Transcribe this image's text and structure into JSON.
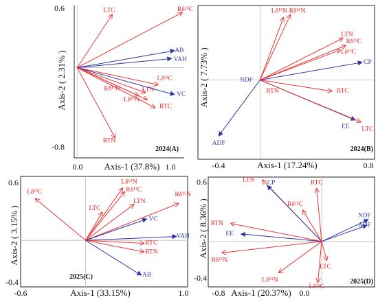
{
  "colors": {
    "red": "#ee3333",
    "blue": "#3333aa",
    "label_red": "#ee2222",
    "label_blue": "#3344aa"
  },
  "chart_data": [
    {
      "type": "biplot",
      "panel_label": "2024(A)",
      "xlabel": "Axis-1 (37.8%)",
      "ylabel": "Axis-2 ( 2.31% )",
      "xlim": [
        -0.03,
        1.1
      ],
      "ylim": [
        -0.9,
        0.62
      ],
      "xticks": [
        {
          "v": 0.0,
          "label": "0.0"
        },
        {
          "v": 1.0,
          "label": "1.0"
        }
      ],
      "yticks": [
        {
          "v": 0.6,
          "label": "0.6"
        },
        {
          "v": -0.8,
          "label": "-0.8"
        }
      ],
      "frame": "axes",
      "vectors": [
        {
          "label": "LTC",
          "x": 0.36,
          "y": 0.53,
          "color": "red",
          "lx": 0.33,
          "ly": 0.57
        },
        {
          "label": "Rδ¹³C",
          "x": 1.08,
          "y": 0.55,
          "color": "red",
          "lx": 1.11,
          "ly": 0.58
        },
        {
          "label": "AB",
          "x": 1.0,
          "y": 0.17,
          "color": "blue",
          "lx": 1.05,
          "ly": 0.17
        },
        {
          "label": "VAH",
          "x": 0.97,
          "y": 0.09,
          "color": "blue",
          "lx": 1.06,
          "ly": 0.08
        },
        {
          "label": "Lδ¹³C",
          "x": 0.83,
          "y": -0.17,
          "color": "red",
          "lx": 0.9,
          "ly": -0.11
        },
        {
          "label": "LTN",
          "x": 0.7,
          "y": -0.25,
          "color": "red",
          "lx": 0.73,
          "ly": -0.22
        },
        {
          "label": "VC",
          "x": 1.0,
          "y": -0.27,
          "color": "blue",
          "lx": 1.07,
          "ly": -0.27
        },
        {
          "label": "Rδ¹⁵N",
          "x": 0.63,
          "y": -0.28,
          "color": "red",
          "lx": 0.36,
          "ly": -0.21
        },
        {
          "label": "Lδ¹⁵N",
          "x": 0.72,
          "y": -0.32,
          "color": "red",
          "lx": 0.56,
          "ly": -0.32
        },
        {
          "label": "RTC",
          "x": 0.8,
          "y": -0.4,
          "color": "red",
          "lx": 0.91,
          "ly": -0.39
        },
        {
          "label": "RTN",
          "x": 0.39,
          "y": -0.7,
          "color": "red",
          "lx": 0.33,
          "ly": -0.73
        }
      ]
    },
    {
      "type": "biplot",
      "panel_label": "2024(B)",
      "xlabel": "Axis-1 (17.24%)",
      "ylabel": "Axis-2 ( 7.73% )",
      "xlim": [
        -0.45,
        0.83
      ],
      "ylim": [
        -0.85,
        0.8
      ],
      "xticks": [
        {
          "v": -0.4,
          "label": "-0.4"
        },
        {
          "v": 0.8,
          "label": "0.8"
        }
      ],
      "yticks": [],
      "frame": "box",
      "vectors": [
        {
          "label": "Lδ¹⁵N",
          "x": 0.17,
          "y": 0.67,
          "color": "red",
          "lx": 0.14,
          "ly": 0.74
        },
        {
          "label": "Rδ¹⁵N",
          "x": 0.22,
          "y": 0.7,
          "color": "red",
          "lx": 0.27,
          "ly": 0.74
        },
        {
          "label": "LTN",
          "x": 0.6,
          "y": 0.45,
          "color": "red",
          "lx": 0.63,
          "ly": 0.49
        },
        {
          "label": "Rδ¹³C",
          "x": 0.62,
          "y": 0.37,
          "color": "red",
          "lx": 0.68,
          "ly": 0.41
        },
        {
          "label": "Lδ¹³C",
          "x": 0.58,
          "y": 0.32,
          "color": "red",
          "lx": 0.64,
          "ly": 0.3
        },
        {
          "label": "CP",
          "x": 0.74,
          "y": 0.19,
          "color": "blue",
          "lx": 0.78,
          "ly": 0.19
        },
        {
          "label": "RTC",
          "x": 0.52,
          "y": -0.12,
          "color": "red",
          "lx": 0.6,
          "ly": -0.12
        },
        {
          "label": "EE",
          "x": 0.69,
          "y": -0.43,
          "color": "blue",
          "lx": 0.62,
          "ly": -0.5
        },
        {
          "label": "LTC",
          "x": 0.73,
          "y": -0.45,
          "color": "red",
          "lx": 0.78,
          "ly": -0.53
        },
        {
          "label": "ADF",
          "x": -0.3,
          "y": -0.6,
          "color": "blue",
          "lx": -0.3,
          "ly": -0.68
        },
        {
          "label": "NDF",
          "x": 0.0,
          "y": 0.0,
          "color": "blue",
          "lx": -0.1,
          "ly": 0.0
        },
        {
          "label": "RTN",
          "x": 0.0,
          "y": 0.0,
          "color": "red",
          "lx": 0.09,
          "ly": -0.12
        }
      ]
    },
    {
      "type": "biplot",
      "panel_label": "2025(C)",
      "xlabel": "Axis-1 (33.15%)",
      "ylabel": "Axis-2 ( 3.15% )",
      "xlim": [
        -0.7,
        1.1
      ],
      "ylim": [
        -0.48,
        0.66
      ],
      "xticks": [
        {
          "v": -0.6,
          "label": "-0.6"
        },
        {
          "v": 1.0,
          "label": "1.0"
        }
      ],
      "yticks": [
        {
          "v": 0.6,
          "label": "0.6"
        },
        {
          "v": -0.4,
          "label": "-0.4"
        }
      ],
      "frame": "box",
      "vectors": [
        {
          "label": "Lδ¹³C",
          "x": -0.54,
          "y": 0.43,
          "color": "red",
          "lx": -0.55,
          "ly": 0.5
        },
        {
          "label": "Lδ¹⁵N",
          "x": 0.4,
          "y": 0.54,
          "color": "red",
          "lx": 0.47,
          "ly": 0.6
        },
        {
          "label": "Rδ¹³C",
          "x": 0.42,
          "y": 0.5,
          "color": "red",
          "lx": 0.52,
          "ly": 0.52
        },
        {
          "label": "LTN",
          "x": 0.52,
          "y": 0.37,
          "color": "red",
          "lx": 0.58,
          "ly": 0.4
        },
        {
          "label": "LTC",
          "x": 0.18,
          "y": 0.29,
          "color": "red",
          "lx": 0.1,
          "ly": 0.33
        },
        {
          "label": "Rδ¹⁵N",
          "x": 1.0,
          "y": 0.38,
          "color": "red",
          "lx": 1.05,
          "ly": 0.47
        },
        {
          "label": "VC",
          "x": 0.66,
          "y": 0.22,
          "color": "blue",
          "lx": 0.73,
          "ly": 0.22
        },
        {
          "label": "VAH",
          "x": 0.98,
          "y": 0.04,
          "color": "blue",
          "lx": 1.05,
          "ly": 0.04
        },
        {
          "label": "RTC",
          "x": 0.63,
          "y": -0.03,
          "color": "red",
          "lx": 0.71,
          "ly": -0.03
        },
        {
          "label": "RTN",
          "x": 0.63,
          "y": -0.12,
          "color": "red",
          "lx": 0.71,
          "ly": -0.12
        },
        {
          "label": "AB",
          "x": 0.6,
          "y": -0.36,
          "color": "blue",
          "lx": 0.66,
          "ly": -0.36
        }
      ]
    },
    {
      "type": "biplot",
      "panel_label": "2025(D)",
      "xlabel": "Axis-1 (20.37%)",
      "ylabel": "Axis-2 ( 8.36% )",
      "xlim": [
        -0.9,
        0.42
      ],
      "ylim": [
        -0.48,
        0.68
      ],
      "xticks": [
        {
          "v": -0.8,
          "label": "-0.8"
        },
        {
          "v": 0.0,
          "label": "0.0"
        }
      ],
      "yticks": [
        {
          "v": 0.6,
          "label": "0.6"
        },
        {
          "v": -0.4,
          "label": "-0.4"
        }
      ],
      "frame": "box",
      "vectors": [
        {
          "label": "LTN",
          "x": -0.47,
          "y": 0.65,
          "color": "red",
          "lx": -0.58,
          "ly": 0.65
        },
        {
          "label": "CP",
          "x": -0.43,
          "y": 0.59,
          "color": "blue",
          "lx": -0.4,
          "ly": 0.62
        },
        {
          "label": "RTC",
          "x": -0.04,
          "y": 0.56,
          "color": "red",
          "lx": -0.04,
          "ly": 0.62
        },
        {
          "label": "Rδ¹³C",
          "x": -0.15,
          "y": 0.33,
          "color": "red",
          "lx": -0.21,
          "ly": 0.39
        },
        {
          "label": "NDF",
          "x": 0.37,
          "y": 0.23,
          "color": "blue",
          "lx": 0.34,
          "ly": 0.27
        },
        {
          "label": "ADF",
          "x": 0.36,
          "y": 0.17,
          "color": "blue",
          "lx": 0.34,
          "ly": 0.17
        },
        {
          "label": "RTN",
          "x": -0.72,
          "y": 0.19,
          "color": "red",
          "lx": -0.83,
          "ly": 0.19
        },
        {
          "label": "EE",
          "x": -0.64,
          "y": 0.08,
          "color": "blue",
          "lx": -0.73,
          "ly": 0.08
        },
        {
          "label": "Rδ¹⁵N",
          "x": -0.79,
          "y": -0.12,
          "color": "red",
          "lx": -0.81,
          "ly": -0.2
        },
        {
          "label": "LTC",
          "x": 0.04,
          "y": -0.2,
          "color": "red",
          "lx": 0.03,
          "ly": -0.27
        },
        {
          "label": "Lδ¹⁵N",
          "x": -0.34,
          "y": -0.33,
          "color": "red",
          "lx": -0.41,
          "ly": -0.41
        },
        {
          "label": "Lδ¹³C",
          "x": -0.03,
          "y": -0.43,
          "color": "red",
          "lx": -0.04,
          "ly": -0.48
        }
      ]
    }
  ]
}
